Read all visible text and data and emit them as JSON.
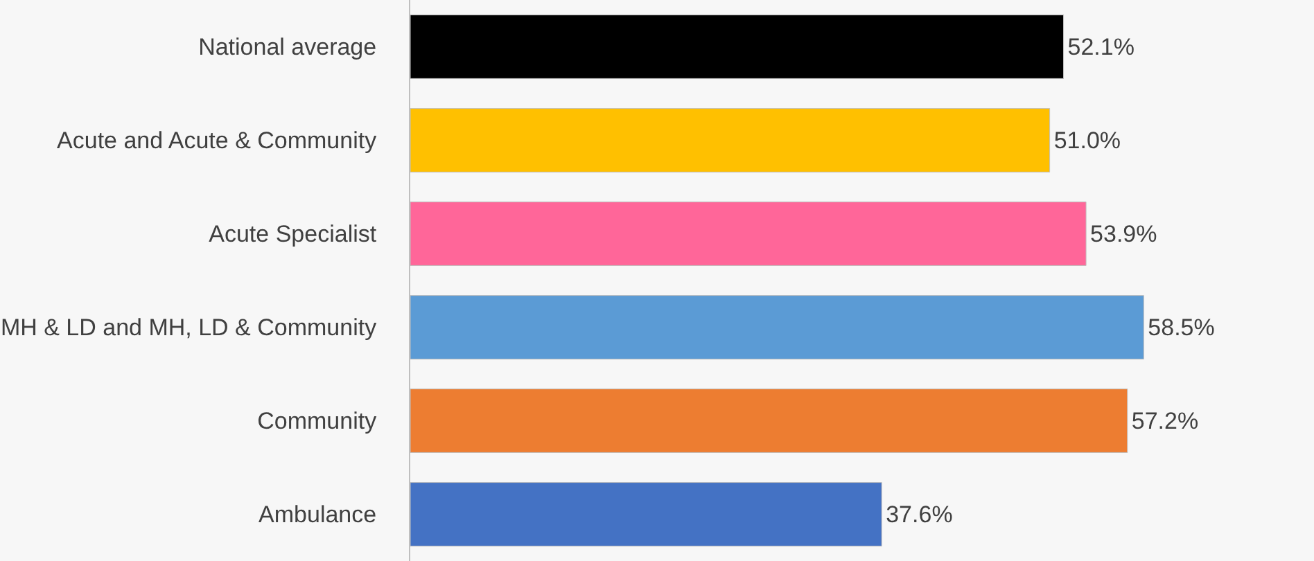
{
  "chart_data": {
    "type": "bar",
    "orientation": "horizontal",
    "categories": [
      "National average",
      "Acute and Acute & Community",
      "Acute Specialist",
      "MH & LD and MH, LD & Community",
      "Community",
      "Ambulance"
    ],
    "values": [
      52.1,
      51.0,
      53.9,
      58.5,
      57.2,
      37.6
    ],
    "value_labels": [
      "52.1%",
      "51.0%",
      "53.9%",
      "58.5%",
      "57.2%",
      "37.6%"
    ],
    "colors": [
      "#000000",
      "#ffc000",
      "#ff6699",
      "#5b9bd5",
      "#ed7d31",
      "#4472c4"
    ],
    "grid": false,
    "legend": false
  }
}
